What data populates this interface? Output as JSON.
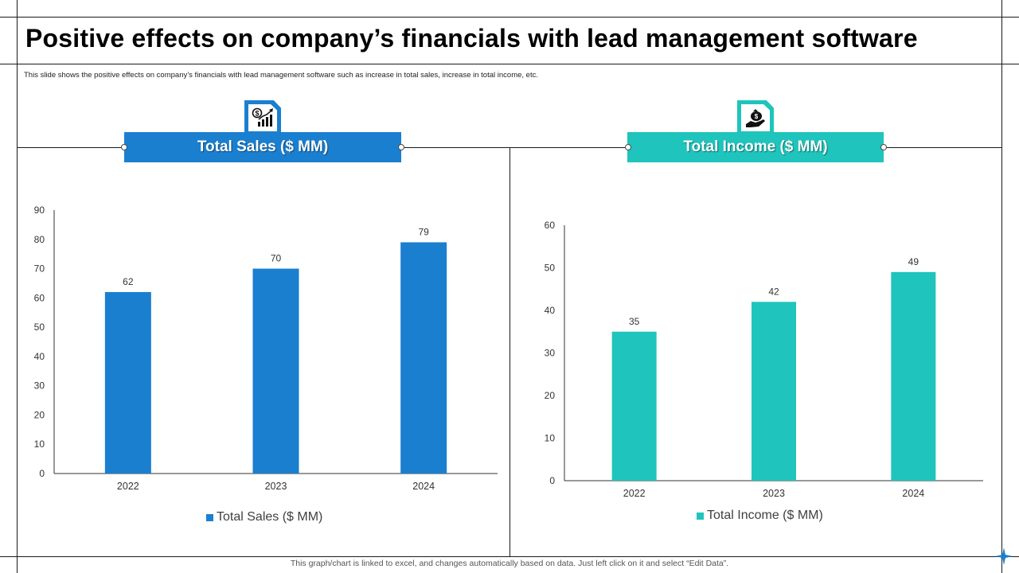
{
  "title": "Positive effects on company’s financials with lead management software",
  "subtitle": "This slide shows the positive effects on company’s financials with lead management  software such as increase in total sales, increase in total income, etc.",
  "footer": "This graph/chart is linked to excel,  and changes automatically based on data. Just left click on it and select “Edit Data”.",
  "colors": {
    "sales": "#1b7fd0",
    "income": "#1fc4bc"
  },
  "icons": {
    "sales": "dollar-chart-icon",
    "income": "money-bag-hand-icon"
  },
  "panels": {
    "sales": {
      "heading": "Total Sales ($ MM)"
    },
    "income": {
      "heading": "Total Income ($ MM)"
    }
  },
  "chart_data": [
    {
      "type": "bar",
      "title": "Total Sales ($ MM)",
      "categories": [
        "2022",
        "2023",
        "2024"
      ],
      "series": [
        {
          "name": "Total Sales ($ MM)",
          "values": [
            62,
            70,
            79
          ]
        }
      ],
      "ylim": [
        0,
        90
      ],
      "yticks": [
        0,
        10,
        20,
        30,
        40,
        50,
        60,
        70,
        80,
        90
      ],
      "xlabel": "",
      "ylabel": "",
      "grid": false,
      "legend": "bottom"
    },
    {
      "type": "bar",
      "title": "Total Income ($ MM)",
      "categories": [
        "2022",
        "2023",
        "2024"
      ],
      "series": [
        {
          "name": "Total Income ($ MM)",
          "values": [
            35,
            42,
            49
          ]
        }
      ],
      "ylim": [
        0,
        60
      ],
      "yticks": [
        0,
        10,
        20,
        30,
        40,
        50,
        60
      ],
      "xlabel": "",
      "ylabel": "",
      "grid": false,
      "legend": "bottom"
    }
  ]
}
